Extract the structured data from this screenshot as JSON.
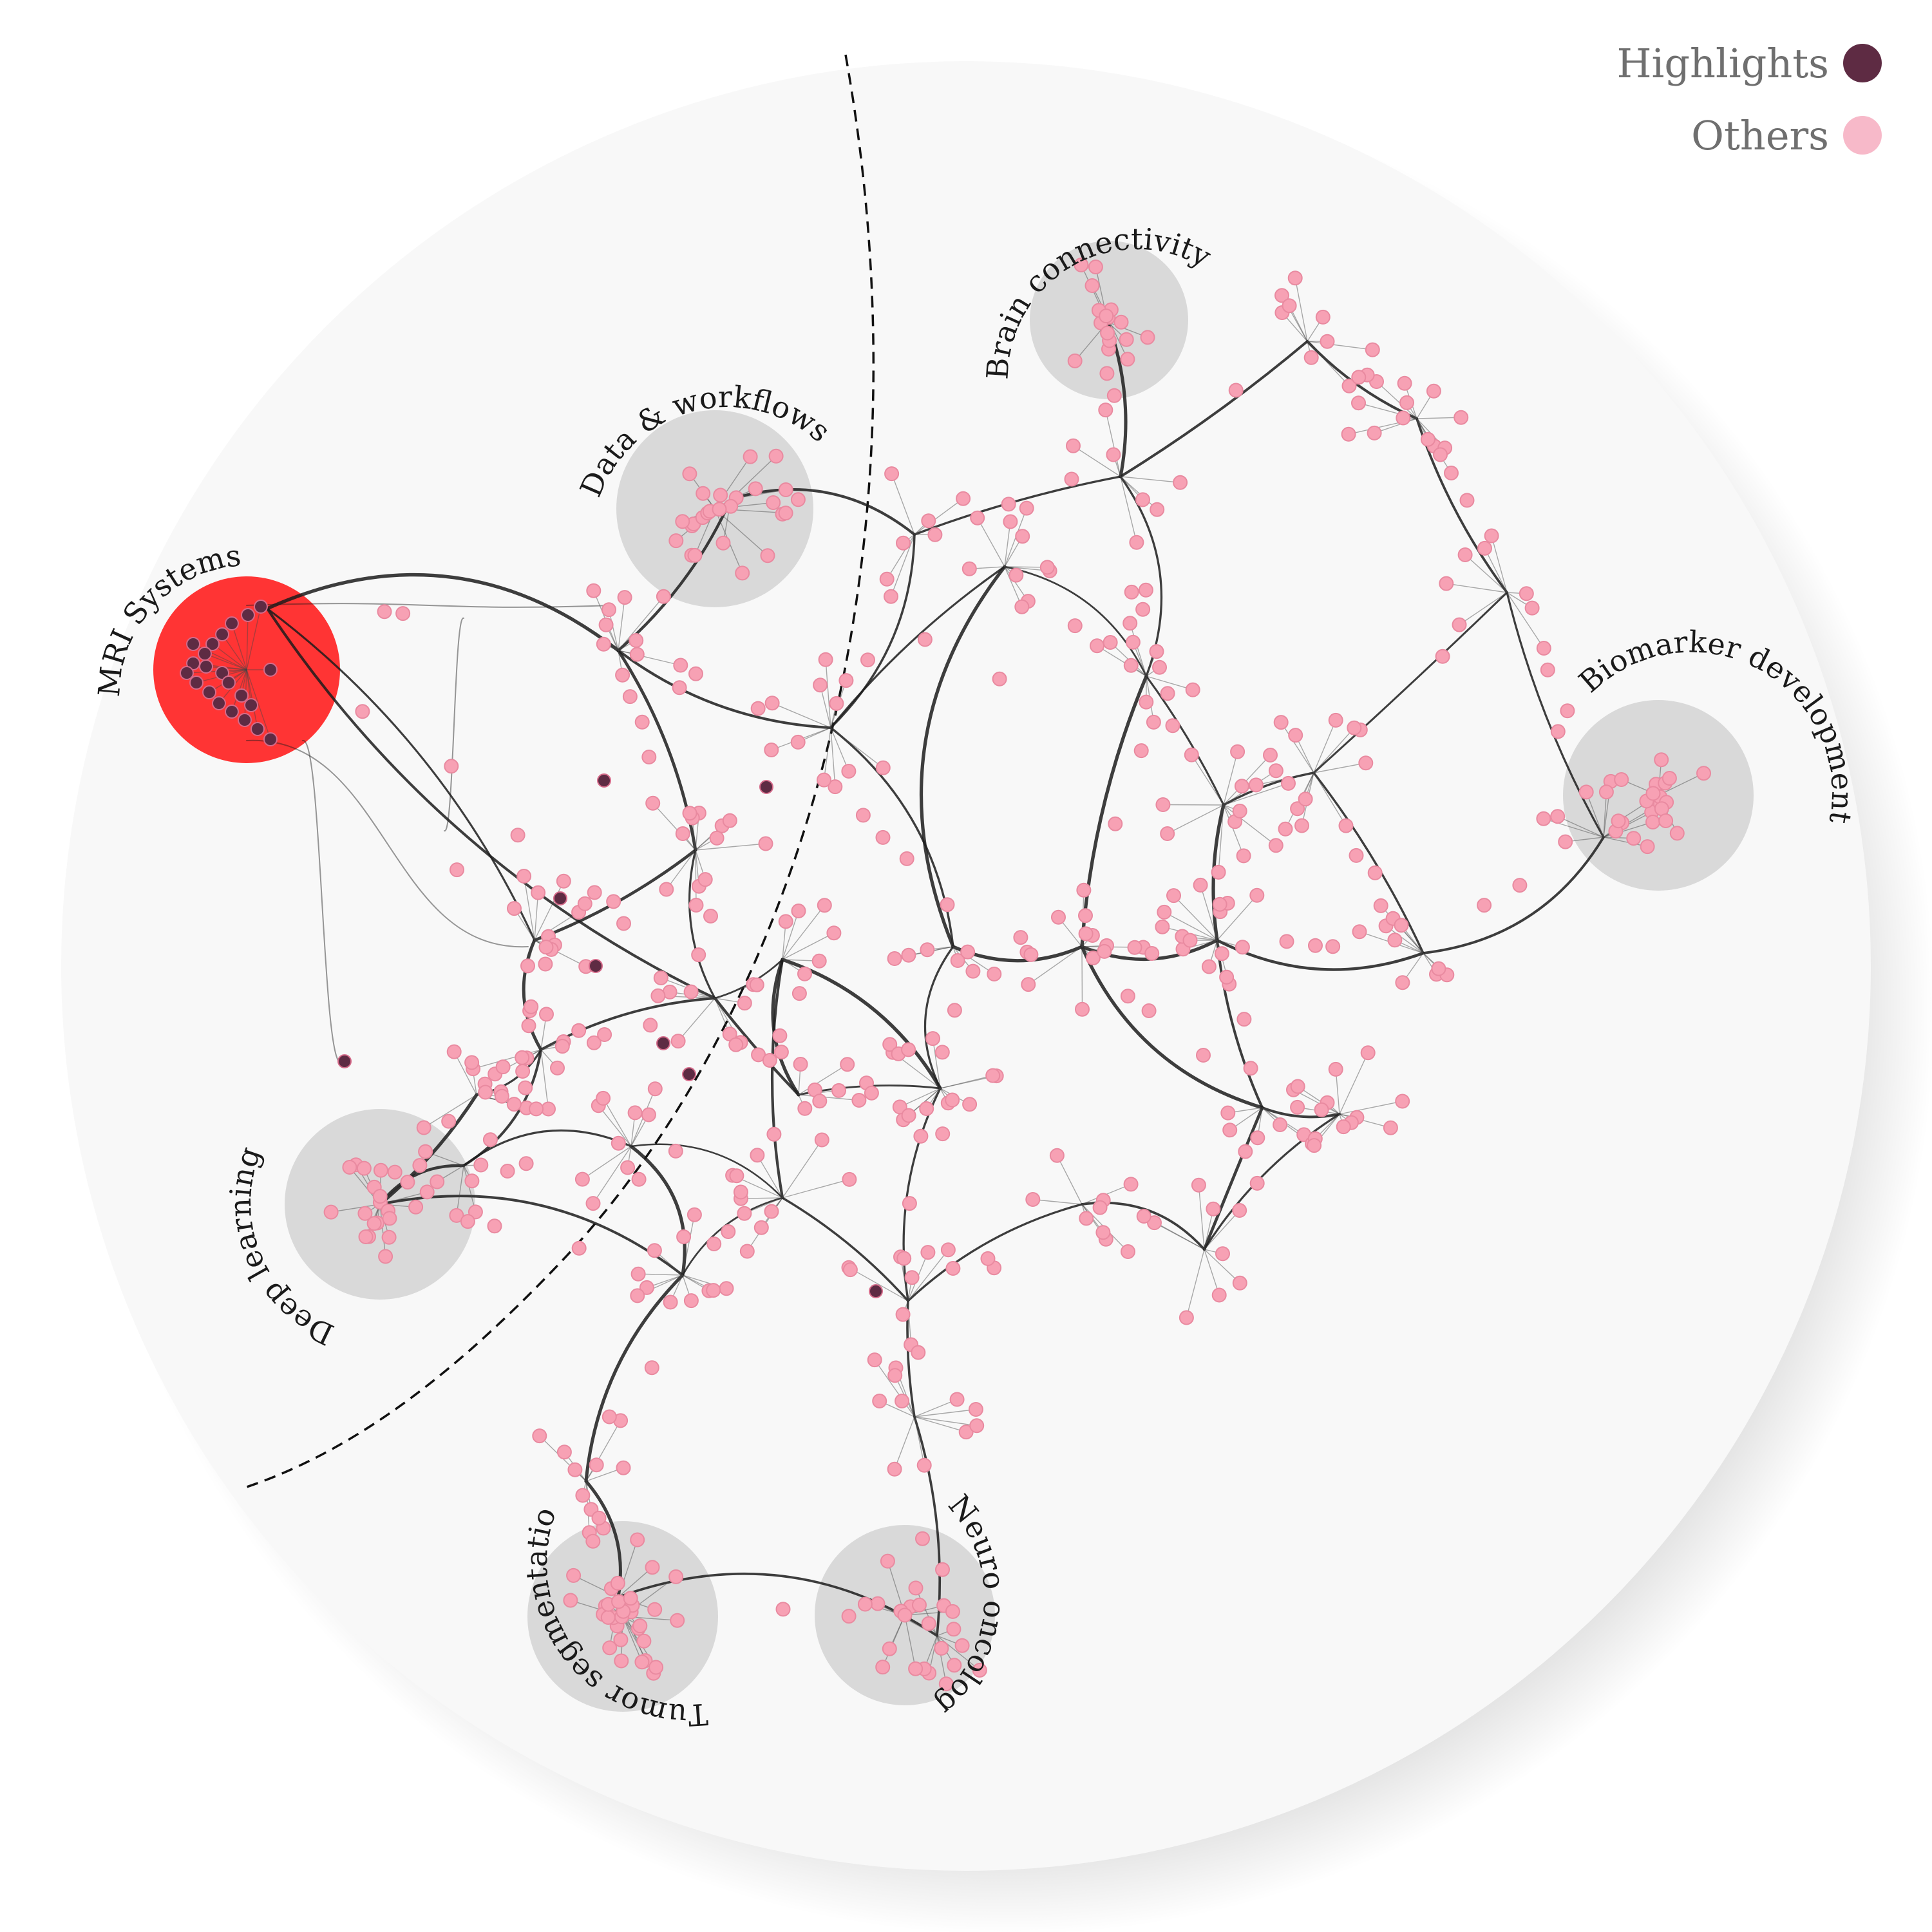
{
  "legend": {
    "items": [
      {
        "label": "Highlights",
        "color": "#5e2b43"
      },
      {
        "label": "Others",
        "color": "#f7b9c9"
      }
    ]
  },
  "colors": {
    "background_disc": "#f8f8f8",
    "cluster_fill": "#d9d9d9",
    "selected_cluster_fill": "#ff3434",
    "node_other_fill": "#f7a1b4",
    "node_other_stroke": "#e98aa0",
    "node_highlight_fill": "#5e2b43",
    "edge": "#1c1c1c",
    "boundary_line": "#111111"
  },
  "clusters": [
    {
      "id": "mri",
      "label": "MRI Systems",
      "selected": true
    },
    {
      "id": "data",
      "label": "Data & workflows",
      "selected": false
    },
    {
      "id": "brain",
      "label": "Brain connectivity",
      "selected": false
    },
    {
      "id": "biomarker",
      "label": "Biomarker development",
      "selected": false
    },
    {
      "id": "deep",
      "label": "Deep learning",
      "selected": false
    },
    {
      "id": "tumor",
      "label": "Tumor segmentation",
      "selected": false
    },
    {
      "id": "neuro",
      "label": "Neuro oncology",
      "selected": false
    }
  ]
}
